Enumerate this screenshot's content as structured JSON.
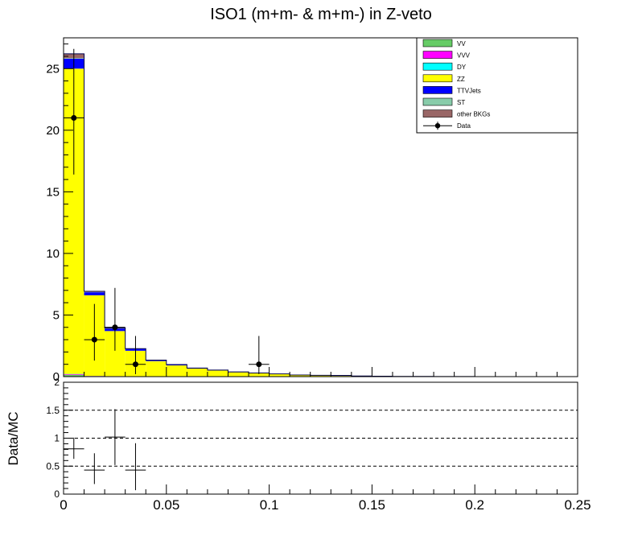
{
  "chart_data": {
    "type": "bar",
    "title": "ISO1 (m+m- & m+m-) in Z-veto",
    "stacked": true,
    "x_edges": [
      0.0,
      0.01,
      0.02,
      0.03,
      0.04,
      0.05,
      0.06,
      0.07,
      0.08,
      0.09,
      0.1,
      0.11,
      0.12,
      0.13,
      0.14,
      0.15,
      0.16,
      0.17,
      0.18,
      0.19,
      0.2,
      0.21,
      0.22,
      0.23,
      0.24,
      0.25
    ],
    "xlim": [
      0,
      0.25
    ],
    "x_ticks": [
      0,
      0.05,
      0.1,
      0.15,
      0.2,
      0.25
    ],
    "x_tick_labels": [
      "0",
      "0.05",
      "0.1",
      "0.15",
      "0.2",
      "0.25"
    ],
    "ylim": [
      0,
      27.5
    ],
    "y_ticks": [
      0,
      5,
      10,
      15,
      20,
      25
    ],
    "y_tick_labels": [
      "0",
      "5",
      "10",
      "15",
      "20",
      "25"
    ],
    "series": [
      {
        "name": "VV",
        "color": "#66cc66",
        "values": [
          0.15,
          0.05,
          0.03,
          0.02,
          0.01,
          0.01,
          0.01,
          0,
          0,
          0,
          0,
          0,
          0,
          0,
          0,
          0,
          0,
          0,
          0,
          0,
          0,
          0,
          0,
          0,
          0
        ]
      },
      {
        "name": "VVV",
        "color": "#ff00ff",
        "values": [
          0.05,
          0.01,
          0.01,
          0,
          0,
          0,
          0,
          0,
          0,
          0,
          0,
          0,
          0,
          0,
          0,
          0,
          0,
          0,
          0,
          0,
          0,
          0,
          0,
          0,
          0
        ]
      },
      {
        "name": "DY",
        "color": "#00ffff",
        "values": [
          0.02,
          0,
          0,
          0,
          0,
          0,
          0,
          0,
          0,
          0,
          0,
          0,
          0,
          0,
          0,
          0,
          0,
          0,
          0,
          0,
          0,
          0,
          0,
          0,
          0
        ]
      },
      {
        "name": "ZZ",
        "color": "#ffff00",
        "values": [
          24.78,
          6.54,
          3.66,
          2.08,
          1.25,
          0.9,
          0.64,
          0.5,
          0.35,
          0.27,
          0.2,
          0.12,
          0.1,
          0.06,
          0.04,
          0.03,
          0.02,
          0.02,
          0.01,
          0.01,
          0,
          0,
          0,
          0,
          0
        ]
      },
      {
        "name": "TTVJets",
        "color": "#0000ff",
        "values": [
          0.8,
          0.25,
          0.2,
          0.15,
          0.07,
          0.06,
          0.04,
          0.03,
          0.03,
          0.02,
          0.02,
          0.01,
          0.01,
          0.04,
          0.01,
          0,
          0,
          0,
          0,
          0,
          0,
          0,
          0,
          0,
          0
        ]
      },
      {
        "name": "ST",
        "color": "#88ccaa",
        "values": [
          0.05,
          0.02,
          0.01,
          0,
          0,
          0,
          0,
          0,
          0,
          0,
          0,
          0,
          0,
          0,
          0,
          0,
          0,
          0,
          0,
          0,
          0,
          0,
          0,
          0,
          0
        ]
      },
      {
        "name": "other BKGs",
        "color": "#996666",
        "values": [
          0.35,
          0.05,
          0.04,
          0.02,
          0.01,
          0.01,
          0,
          0,
          0,
          0,
          0,
          0,
          0,
          0,
          0,
          0,
          0,
          0,
          0,
          0,
          0,
          0,
          0,
          0,
          0
        ]
      }
    ],
    "data_points": {
      "name": "Data",
      "x": [
        0.005,
        0.015,
        0.025,
        0.035,
        0.095
      ],
      "y": [
        21,
        3,
        4,
        1,
        1
      ],
      "yerr_low": [
        4.6,
        1.7,
        1.9,
        0.8,
        0.8
      ],
      "yerr_high": [
        5.6,
        2.9,
        3.2,
        2.3,
        2.3
      ]
    },
    "ratio": {
      "ylabel": "Data/MC",
      "ylim": [
        0,
        2
      ],
      "y_ticks": [
        0,
        0.5,
        1,
        1.5,
        2
      ],
      "y_tick_labels": [
        "0",
        "0.5",
        "1",
        "1.5",
        "2"
      ],
      "dashed_lines": [
        0.5,
        1,
        1.5
      ],
      "x": [
        0.005,
        0.015,
        0.025,
        0.035
      ],
      "y": [
        0.81,
        0.43,
        1.02,
        0.43
      ],
      "yerr_low": [
        0.18,
        0.25,
        0.5,
        0.36
      ],
      "yerr_high": [
        0.2,
        0.3,
        0.5,
        0.48
      ]
    },
    "legend": {
      "placement": "top-right",
      "entries": [
        "VV",
        "VVV",
        "DY",
        "ZZ",
        "TTVJets",
        "ST",
        "other BKGs",
        "Data"
      ]
    }
  }
}
